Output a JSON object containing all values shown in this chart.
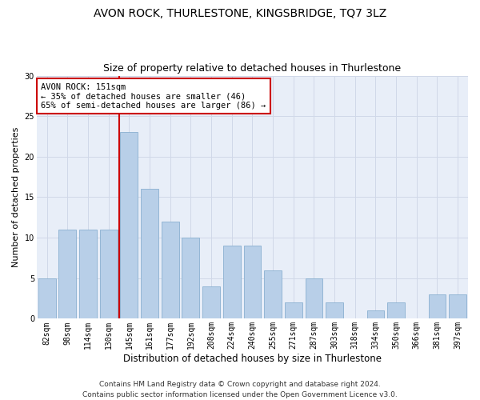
{
  "title": "AVON ROCK, THURLESTONE, KINGSBRIDGE, TQ7 3LZ",
  "subtitle": "Size of property relative to detached houses in Thurlestone",
  "xlabel": "Distribution of detached houses by size in Thurlestone",
  "ylabel": "Number of detached properties",
  "categories": [
    "82sqm",
    "98sqm",
    "114sqm",
    "130sqm",
    "145sqm",
    "161sqm",
    "177sqm",
    "192sqm",
    "208sqm",
    "224sqm",
    "240sqm",
    "255sqm",
    "271sqm",
    "287sqm",
    "303sqm",
    "318sqm",
    "334sqm",
    "350sqm",
    "366sqm",
    "381sqm",
    "397sqm"
  ],
  "values": [
    5,
    11,
    11,
    11,
    23,
    16,
    12,
    10,
    4,
    9,
    9,
    6,
    2,
    5,
    2,
    0,
    1,
    2,
    0,
    3,
    3
  ],
  "bar_color": "#b8cfe8",
  "bar_edge_color": "#8ab0d0",
  "red_line_index": 4,
  "annotation_text": "AVON ROCK: 151sqm\n← 35% of detached houses are smaller (46)\n65% of semi-detached houses are larger (86) →",
  "annotation_box_color": "#ffffff",
  "annotation_box_edge": "#cc0000",
  "ylim": [
    0,
    30
  ],
  "yticks": [
    0,
    5,
    10,
    15,
    20,
    25,
    30
  ],
  "grid_color": "#d0d8e8",
  "background_color": "#e8eef8",
  "footer_line1": "Contains HM Land Registry data © Crown copyright and database right 2024.",
  "footer_line2": "Contains public sector information licensed under the Open Government Licence v3.0.",
  "title_fontsize": 10,
  "subtitle_fontsize": 9,
  "xlabel_fontsize": 8.5,
  "ylabel_fontsize": 8,
  "tick_fontsize": 7,
  "annotation_fontsize": 7.5,
  "footer_fontsize": 6.5
}
